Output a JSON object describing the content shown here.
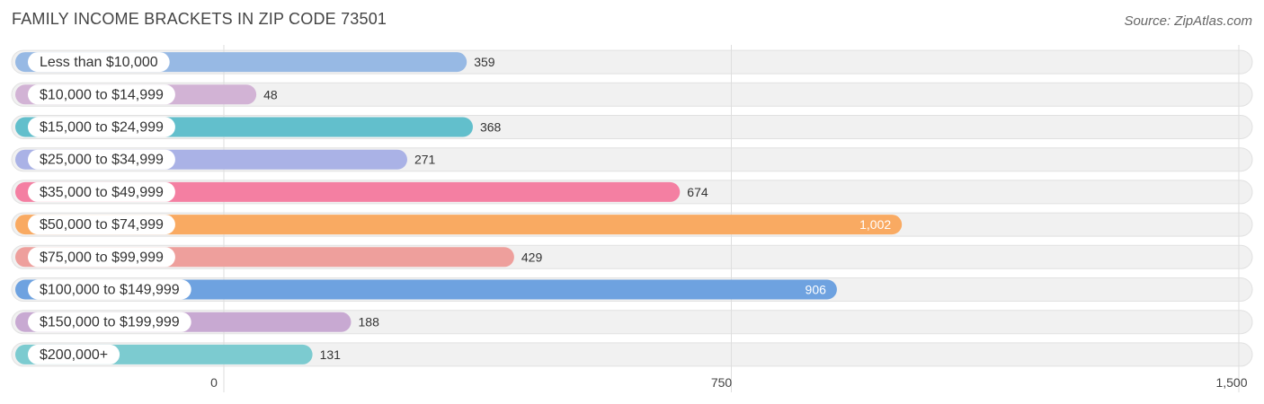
{
  "header": {
    "title": "FAMILY INCOME BRACKETS IN ZIP CODE 73501",
    "source": "Source: ZipAtlas.com"
  },
  "chart_data": {
    "type": "bar",
    "orientation": "horizontal",
    "title": "FAMILY INCOME BRACKETS IN ZIP CODE 73501",
    "categories": [
      "Less than $10,000",
      "$10,000 to $14,999",
      "$15,000 to $24,999",
      "$25,000 to $34,999",
      "$35,000 to $49,999",
      "$50,000 to $74,999",
      "$75,000 to $99,999",
      "$100,000 to $149,999",
      "$150,000 to $199,999",
      "$200,000+"
    ],
    "values": [
      359,
      48,
      368,
      271,
      674,
      1002,
      429,
      906,
      188,
      131
    ],
    "value_labels": [
      "359",
      "48",
      "368",
      "271",
      "674",
      "1,002",
      "429",
      "906",
      "188",
      "131"
    ],
    "colors": [
      "#97b9e4",
      "#d2b3d5",
      "#62bfcc",
      "#aab2e6",
      "#f47fa2",
      "#f9aa62",
      "#ee9f9c",
      "#6ea2e0",
      "#c8a9d2",
      "#7ccbd0"
    ],
    "xlim": [
      0,
      1500
    ],
    "xticks": [
      0,
      750,
      1500
    ],
    "xtick_labels": [
      "0",
      "750",
      "1,500"
    ],
    "grid": true
  }
}
